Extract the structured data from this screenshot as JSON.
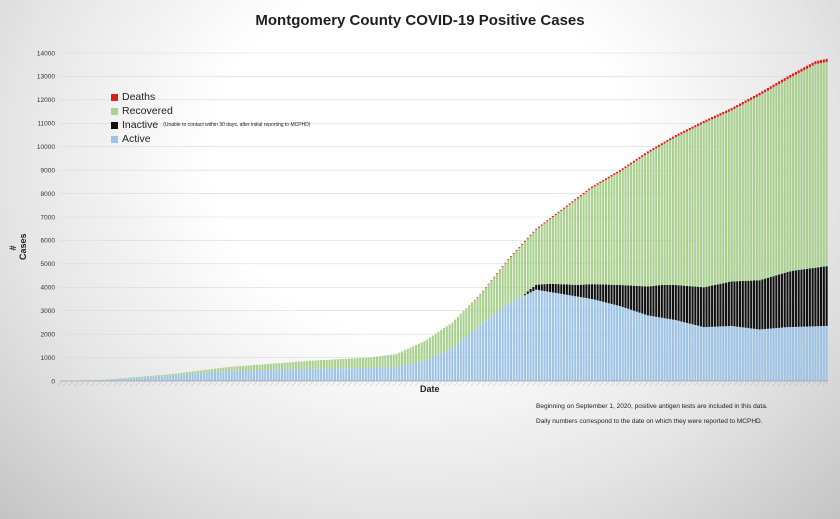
{
  "title": "Montgomery County COVID-19 Positive Cases",
  "ylabel": "# Cases",
  "xlabel": "Date",
  "legend": {
    "deaths": "Deaths",
    "recovered": "Recovered",
    "inactive": "Inactive",
    "inactive_note": "(Unable to contact within 30 days, after initial reporting to MCPHD)",
    "active": "Active"
  },
  "notes": [
    "Beginning on September 1, 2020, positive antigen tests are included in this data.",
    "Daily numbers correspond to the date on which they were reported to MCPHD."
  ],
  "colors": {
    "deaths": "#e31a1c",
    "recovered": "#a9d08e",
    "inactive": "#111111",
    "active": "#9dc3e6"
  },
  "chart_data": {
    "type": "bar",
    "stacked": true,
    "xlabel": "Date",
    "ylabel": "# Cases",
    "ylim": [
      0,
      14000
    ],
    "yticks": [
      0,
      1000,
      2000,
      3000,
      4000,
      5000,
      6000,
      7000,
      8000,
      9000,
      10000,
      11000,
      12000,
      13000,
      14000
    ],
    "grid": true,
    "legend_position": "top-left",
    "num_days": 275,
    "series_order": [
      "Active",
      "Inactive",
      "Recovered",
      "Deaths"
    ],
    "total_cases_keyframes": [
      [
        0,
        0
      ],
      [
        15,
        50
      ],
      [
        40,
        300
      ],
      [
        60,
        600
      ],
      [
        90,
        870
      ],
      [
        110,
        1000
      ],
      [
        120,
        1150
      ],
      [
        130,
        1700
      ],
      [
        140,
        2500
      ],
      [
        150,
        3700
      ],
      [
        160,
        5200
      ],
      [
        170,
        6500
      ],
      [
        180,
        7400
      ],
      [
        190,
        8300
      ],
      [
        200,
        9000
      ],
      [
        210,
        9800
      ],
      [
        220,
        10500
      ],
      [
        230,
        11100
      ],
      [
        240,
        11650
      ],
      [
        250,
        12300
      ],
      [
        260,
        13000
      ],
      [
        270,
        13650
      ],
      [
        274,
        13750
      ]
    ],
    "active_cases_keyframes": [
      [
        0,
        0
      ],
      [
        15,
        40
      ],
      [
        40,
        230
      ],
      [
        60,
        430
      ],
      [
        90,
        520
      ],
      [
        110,
        560
      ],
      [
        120,
        600
      ],
      [
        130,
        850
      ],
      [
        140,
        1400
      ],
      [
        150,
        2400
      ],
      [
        160,
        3300
      ],
      [
        170,
        3900
      ],
      [
        180,
        3700
      ],
      [
        190,
        3500
      ],
      [
        200,
        3200
      ],
      [
        210,
        2800
      ],
      [
        220,
        2600
      ],
      [
        230,
        2300
      ],
      [
        240,
        2350
      ],
      [
        250,
        2200
      ],
      [
        260,
        2300
      ],
      [
        274,
        2350
      ]
    ],
    "inactive_cases_keyframes": [
      [
        0,
        0
      ],
      [
        165,
        0
      ],
      [
        168,
        150
      ],
      [
        175,
        350
      ],
      [
        185,
        500
      ],
      [
        200,
        900
      ],
      [
        215,
        1400
      ],
      [
        235,
        1800
      ],
      [
        250,
        2100
      ],
      [
        262,
        2400
      ],
      [
        274,
        2550
      ]
    ],
    "deaths_cases_keyframes": [
      [
        0,
        0
      ],
      [
        140,
        0
      ],
      [
        150,
        20
      ],
      [
        170,
        40
      ],
      [
        200,
        70
      ],
      [
        240,
        100
      ],
      [
        274,
        130
      ]
    ]
  }
}
